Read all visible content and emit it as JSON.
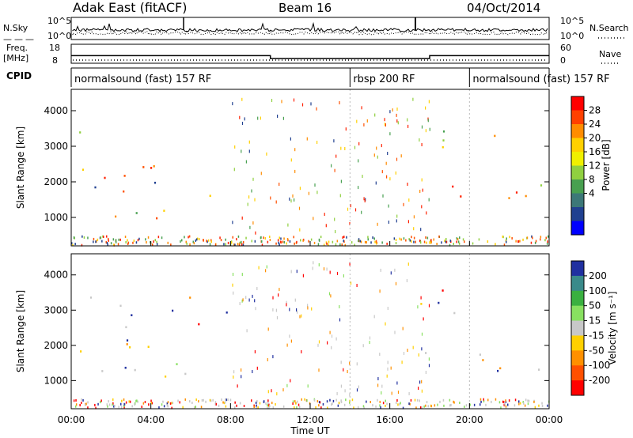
{
  "header": {
    "radar": "Adak East (fitACF)",
    "beam": "Beam 16",
    "date": "04/Oct/2014"
  },
  "noise_panel": {
    "left_label": "N.Sky",
    "right_label": "N.Search",
    "left_ticks": [
      "10^5",
      "10^0"
    ],
    "right_ticks": [
      "10^5",
      "10^0"
    ]
  },
  "freq_panel": {
    "left_label_line1": "Freq.",
    "left_label_line2": "[MHz]",
    "right_label": "Nave",
    "left_ticks": [
      "18",
      "8"
    ],
    "right_ticks": [
      "60",
      "0"
    ],
    "freq_steps": [
      {
        "start": 0.0,
        "end": 10.0,
        "value": 12.0
      },
      {
        "start": 10.0,
        "end": 18.0,
        "value": 10.5
      },
      {
        "start": 18.0,
        "end": 24.0,
        "value": 12.0
      }
    ]
  },
  "cpid": {
    "label": "CPID",
    "segments": [
      {
        "start": 0,
        "end": 14,
        "text": "normalsound (fast) 157 RF"
      },
      {
        "start": 14,
        "end": 20,
        "text": "rbsp 200 RF"
      },
      {
        "start": 20,
        "end": 24,
        "text": "normalsound (fast) 157 RF"
      }
    ]
  },
  "colorbars": {
    "power": {
      "label": "Power [dB]",
      "ticks": [
        "28",
        "24",
        "20",
        "16",
        "12",
        "8",
        "4"
      ],
      "colors": [
        "#ff0000",
        "#ff4000",
        "#ff8c00",
        "#ffd000",
        "#f0f000",
        "#90d040",
        "#48a050",
        "#3c7878",
        "#204090",
        "#0000ff"
      ]
    },
    "velocity": {
      "label": "Velocity [m s⁻¹]",
      "ticks": [
        "200",
        "100",
        "50",
        "15",
        "-15",
        "-50",
        "-100",
        "-200"
      ],
      "colors": [
        "#2030a0",
        "#3a8a8a",
        "#3ab040",
        "#88e060",
        "#c8c8c8",
        "#ffd000",
        "#ff9000",
        "#ff5000",
        "#ff0000"
      ]
    }
  },
  "chart_data": [
    {
      "type": "heatmap",
      "name_printed": "Power [dB]",
      "ylabel": "Slant Range [km]",
      "y_ticks": [
        1000,
        2000,
        3000,
        4000
      ],
      "ylim": [
        200,
        4600
      ],
      "xlim": [
        0,
        24
      ],
      "features": [
        {
          "region": "E-W ionospheric band",
          "time": [
            0.2,
            7.0
          ],
          "range": [
            1000,
            3500
          ],
          "power_db": [
            14,
            30
          ]
        },
        {
          "region": "late scatter upper",
          "time": [
            17.5,
            24.0
          ],
          "range": [
            2900,
            3600
          ],
          "power_db": [
            12,
            28
          ]
        },
        {
          "region": "late scatter lower",
          "time": [
            17.5,
            24.0
          ],
          "range": [
            1300,
            2300
          ],
          "power_db": [
            14,
            30
          ]
        },
        {
          "region": "patch",
          "time": [
            13.2,
            14.2
          ],
          "range": [
            1500,
            1900
          ],
          "power_db": [
            4,
            12
          ]
        }
      ]
    },
    {
      "type": "heatmap",
      "name_printed": "Velocity [m s⁻¹]",
      "ylabel": "Slant Range [km]",
      "y_ticks": [
        1000,
        2000,
        3000,
        4000
      ],
      "ylim": [
        200,
        4600
      ],
      "xlim": [
        0,
        24
      ],
      "x_ticks": [
        "00:00",
        "04:00",
        "08:00",
        "12:00",
        "16:00",
        "20:00",
        "00:00"
      ],
      "xlabel": "Time UT",
      "features": [
        {
          "region": "early scatter",
          "time": [
            0.2,
            8.5
          ],
          "range": [
            1000,
            3500
          ],
          "velocity": [
            -100,
            15
          ]
        },
        {
          "region": "patch",
          "time": [
            13.2,
            14.2
          ],
          "range": [
            1500,
            1900
          ],
          "velocity": [
            15,
            50
          ]
        },
        {
          "region": "late scatter upper",
          "time": [
            17.5,
            24.0
          ],
          "range": [
            2900,
            3600
          ],
          "velocity": [
            -15,
            15
          ]
        },
        {
          "region": "late scatter lower",
          "time": [
            17.5,
            24.0
          ],
          "range": [
            1300,
            2300
          ],
          "velocity": [
            -15,
            15
          ]
        }
      ]
    }
  ]
}
